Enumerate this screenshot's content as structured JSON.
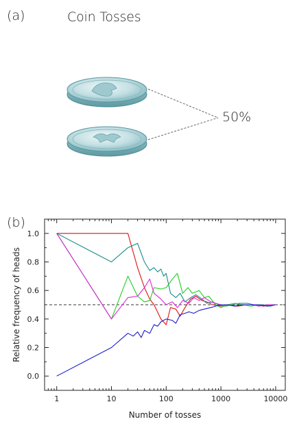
{
  "panel_a": {
    "label": "(a)",
    "title": "Coin Tosses",
    "probability": "50%"
  },
  "panel_b": {
    "label": "(b)"
  },
  "chart_data": {
    "type": "line",
    "title": "",
    "xlabel": "Number of tosses",
    "ylabel": "Relative frequency of heads",
    "x_scale": "log",
    "xlim": [
      0.6,
      15000
    ],
    "ylim": [
      -0.1,
      1.1
    ],
    "x_ticks": [
      1,
      10,
      100,
      1000,
      10000
    ],
    "x_tick_labels": [
      "1",
      "10",
      "100",
      "1000",
      "10000"
    ],
    "y_ticks": [
      0.0,
      0.2,
      0.4,
      0.6,
      0.8,
      1.0
    ],
    "y_tick_labels": [
      "0.0",
      "0.2",
      "0.4",
      "0.6",
      "0.8",
      "1.0"
    ],
    "reference_line": {
      "y": 0.5,
      "style": "dashed",
      "color": "#333333"
    },
    "grid": false,
    "series": [
      {
        "color": "#e01010",
        "points": [
          [
            1,
            1.0
          ],
          [
            20,
            1.0
          ],
          [
            30,
            0.76
          ],
          [
            40,
            0.62
          ],
          [
            50,
            0.54
          ],
          [
            60,
            0.5
          ],
          [
            80,
            0.4
          ],
          [
            100,
            0.36
          ],
          [
            120,
            0.48
          ],
          [
            150,
            0.47
          ],
          [
            180,
            0.42
          ],
          [
            220,
            0.48
          ],
          [
            280,
            0.54
          ],
          [
            350,
            0.56
          ],
          [
            450,
            0.53
          ],
          [
            550,
            0.52
          ],
          [
            700,
            0.5
          ],
          [
            1000,
            0.49
          ],
          [
            1400,
            0.5
          ],
          [
            2000,
            0.49
          ],
          [
            3000,
            0.5
          ],
          [
            4000,
            0.5
          ],
          [
            6000,
            0.49
          ],
          [
            8000,
            0.5
          ],
          [
            10000,
            0.5
          ]
        ]
      },
      {
        "color": "#148a8a",
        "points": [
          [
            1,
            1.0
          ],
          [
            10,
            0.8
          ],
          [
            20,
            0.9
          ],
          [
            30,
            0.93
          ],
          [
            40,
            0.8
          ],
          [
            50,
            0.74
          ],
          [
            60,
            0.76
          ],
          [
            70,
            0.73
          ],
          [
            80,
            0.75
          ],
          [
            90,
            0.7
          ],
          [
            100,
            0.72
          ],
          [
            120,
            0.58
          ],
          [
            150,
            0.55
          ],
          [
            180,
            0.58
          ],
          [
            220,
            0.52
          ],
          [
            280,
            0.55
          ],
          [
            350,
            0.57
          ],
          [
            450,
            0.54
          ],
          [
            550,
            0.51
          ],
          [
            700,
            0.52
          ],
          [
            900,
            0.5
          ],
          [
            1200,
            0.49
          ],
          [
            1600,
            0.5
          ],
          [
            2200,
            0.51
          ],
          [
            3000,
            0.51
          ],
          [
            4000,
            0.5
          ],
          [
            6000,
            0.5
          ],
          [
            8000,
            0.49
          ],
          [
            10000,
            0.5
          ]
        ]
      },
      {
        "color": "#22cc22",
        "points": [
          [
            1,
            1.0
          ],
          [
            10,
            0.4
          ],
          [
            20,
            0.7
          ],
          [
            30,
            0.56
          ],
          [
            40,
            0.52
          ],
          [
            50,
            0.53
          ],
          [
            60,
            0.62
          ],
          [
            80,
            0.61
          ],
          [
            100,
            0.62
          ],
          [
            130,
            0.68
          ],
          [
            160,
            0.72
          ],
          [
            200,
            0.58
          ],
          [
            250,
            0.62
          ],
          [
            300,
            0.58
          ],
          [
            400,
            0.6
          ],
          [
            500,
            0.55
          ],
          [
            600,
            0.56
          ],
          [
            800,
            0.5
          ],
          [
            1000,
            0.48
          ],
          [
            1300,
            0.5
          ],
          [
            1800,
            0.51
          ],
          [
            2500,
            0.5
          ],
          [
            3500,
            0.49
          ],
          [
            5000,
            0.5
          ],
          [
            7000,
            0.49
          ],
          [
            10000,
            0.5
          ]
        ]
      },
      {
        "color": "#dd22dd",
        "points": [
          [
            1,
            1.0
          ],
          [
            10,
            0.4
          ],
          [
            20,
            0.55
          ],
          [
            30,
            0.56
          ],
          [
            40,
            0.62
          ],
          [
            50,
            0.68
          ],
          [
            60,
            0.58
          ],
          [
            80,
            0.54
          ],
          [
            100,
            0.5
          ],
          [
            130,
            0.52
          ],
          [
            160,
            0.48
          ],
          [
            200,
            0.53
          ],
          [
            260,
            0.51
          ],
          [
            320,
            0.55
          ],
          [
            400,
            0.53
          ],
          [
            500,
            0.55
          ],
          [
            650,
            0.52
          ],
          [
            800,
            0.51
          ],
          [
            1000,
            0.5
          ],
          [
            1300,
            0.5
          ],
          [
            1800,
            0.49
          ],
          [
            2500,
            0.5
          ],
          [
            3500,
            0.5
          ],
          [
            5000,
            0.49
          ],
          [
            7000,
            0.5
          ],
          [
            10000,
            0.5
          ]
        ]
      },
      {
        "color": "#1a1acc",
        "points": [
          [
            1,
            0.0
          ],
          [
            10,
            0.2
          ],
          [
            20,
            0.3
          ],
          [
            25,
            0.28
          ],
          [
            30,
            0.31
          ],
          [
            35,
            0.27
          ],
          [
            40,
            0.32
          ],
          [
            50,
            0.3
          ],
          [
            60,
            0.36
          ],
          [
            70,
            0.35
          ],
          [
            80,
            0.38
          ],
          [
            100,
            0.4
          ],
          [
            130,
            0.39
          ],
          [
            150,
            0.37
          ],
          [
            180,
            0.43
          ],
          [
            220,
            0.44
          ],
          [
            260,
            0.45
          ],
          [
            320,
            0.44
          ],
          [
            400,
            0.46
          ],
          [
            500,
            0.47
          ],
          [
            650,
            0.48
          ],
          [
            800,
            0.49
          ],
          [
            1000,
            0.5
          ],
          [
            1300,
            0.5
          ],
          [
            1800,
            0.49
          ],
          [
            2500,
            0.5
          ],
          [
            3500,
            0.5
          ],
          [
            5000,
            0.5
          ],
          [
            7000,
            0.49
          ],
          [
            10000,
            0.5
          ]
        ]
      }
    ]
  }
}
